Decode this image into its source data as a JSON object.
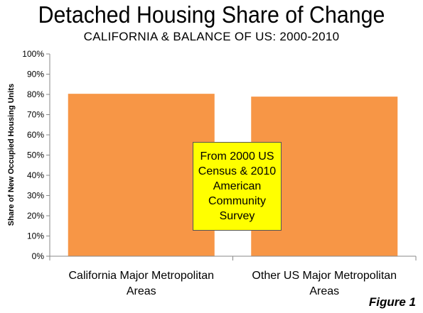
{
  "chart_data": {
    "type": "bar",
    "title": "Detached Housing Share of Change",
    "subtitle": "CALIFORNIA & BALANCE OF US: 2000-2010",
    "ylabel": "Share of New Occupied Housing Units",
    "xlabel": "",
    "categories": [
      "California Major Metropolitan Areas",
      "Other US Major Metropolitan Areas"
    ],
    "category_lines": [
      [
        "California Major Metropolitan",
        "Areas"
      ],
      [
        "Other US Major Metropolitan",
        "Areas"
      ]
    ],
    "values": [
      80.3,
      78.9
    ],
    "ylim": [
      0,
      100
    ],
    "yticks": [
      0,
      10,
      20,
      30,
      40,
      50,
      60,
      70,
      80,
      90,
      100
    ],
    "ytick_labels": [
      "0%",
      "10%",
      "20%",
      "30%",
      "40%",
      "50%",
      "60%",
      "70%",
      "80%",
      "90%",
      "100%"
    ],
    "grid": false,
    "bar_color": "#f79646",
    "annotation": "From 2000 US Census & 2010 American Community Survey",
    "figure_label": "Figure 1"
  }
}
